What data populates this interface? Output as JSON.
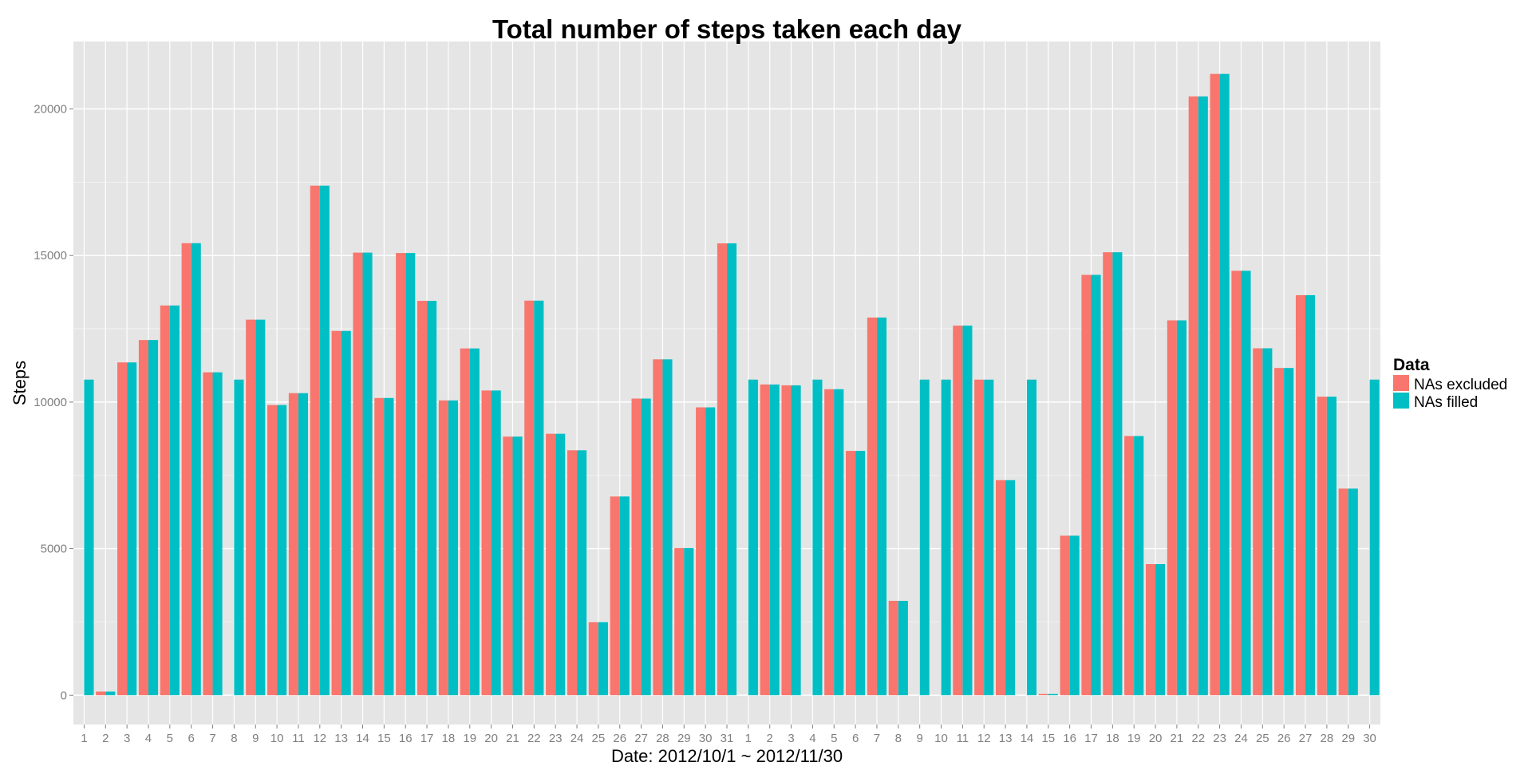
{
  "chart_data": {
    "type": "bar",
    "title": "Total number of steps taken each day",
    "xlabel": "Date: 2012/10/1 ~ 2012/11/30",
    "ylabel": "Steps",
    "ylim": [
      -1000,
      22300
    ],
    "yticks": [
      0,
      5000,
      10000,
      15000,
      20000
    ],
    "grid": true,
    "legend_position": "right",
    "legend_title": "Data",
    "categories": [
      "1",
      "2",
      "3",
      "4",
      "5",
      "6",
      "7",
      "8",
      "9",
      "10",
      "11",
      "12",
      "13",
      "14",
      "15",
      "16",
      "17",
      "18",
      "19",
      "20",
      "21",
      "22",
      "23",
      "24",
      "25",
      "26",
      "27",
      "28",
      "29",
      "30",
      "31",
      "1",
      "2",
      "3",
      "4",
      "5",
      "6",
      "7",
      "8",
      "9",
      "10",
      "11",
      "12",
      "13",
      "14",
      "15",
      "16",
      "17",
      "18",
      "19",
      "20",
      "21",
      "22",
      "23",
      "24",
      "25",
      "26",
      "27",
      "28",
      "29",
      "30"
    ],
    "series": [
      {
        "name": "NAs excluded",
        "color": "#F8766D",
        "values": [
          null,
          126,
          11352,
          12116,
          13294,
          15420,
          11015,
          null,
          12811,
          9900,
          10304,
          17382,
          12426,
          15098,
          10139,
          15084,
          13452,
          10056,
          11829,
          10395,
          8821,
          13460,
          8918,
          8355,
          2492,
          6778,
          10119,
          11458,
          5018,
          9819,
          15414,
          null,
          10600,
          10571,
          null,
          10439,
          8334,
          12883,
          3219,
          null,
          null,
          12608,
          10765,
          7336,
          null,
          41,
          5441,
          14339,
          15110,
          8841,
          4472,
          12787,
          20427,
          21194,
          14478,
          11834,
          11162,
          13646,
          10183,
          7047,
          null
        ]
      },
      {
        "name": "NAs filled",
        "color": "#00BFC4",
        "values": [
          10766,
          126,
          11352,
          12116,
          13294,
          15420,
          11015,
          10766,
          12811,
          9900,
          10304,
          17382,
          12426,
          15098,
          10139,
          15084,
          13452,
          10056,
          11829,
          10395,
          8821,
          13460,
          8918,
          8355,
          2492,
          6778,
          10119,
          11458,
          5018,
          9819,
          15414,
          10766,
          10600,
          10571,
          10766,
          10439,
          8334,
          12883,
          3219,
          10766,
          10766,
          12608,
          10765,
          7336,
          10766,
          41,
          5441,
          14339,
          15110,
          8841,
          4472,
          12787,
          20427,
          21194,
          14478,
          11834,
          11162,
          13646,
          10183,
          7047,
          10766
        ]
      }
    ]
  }
}
